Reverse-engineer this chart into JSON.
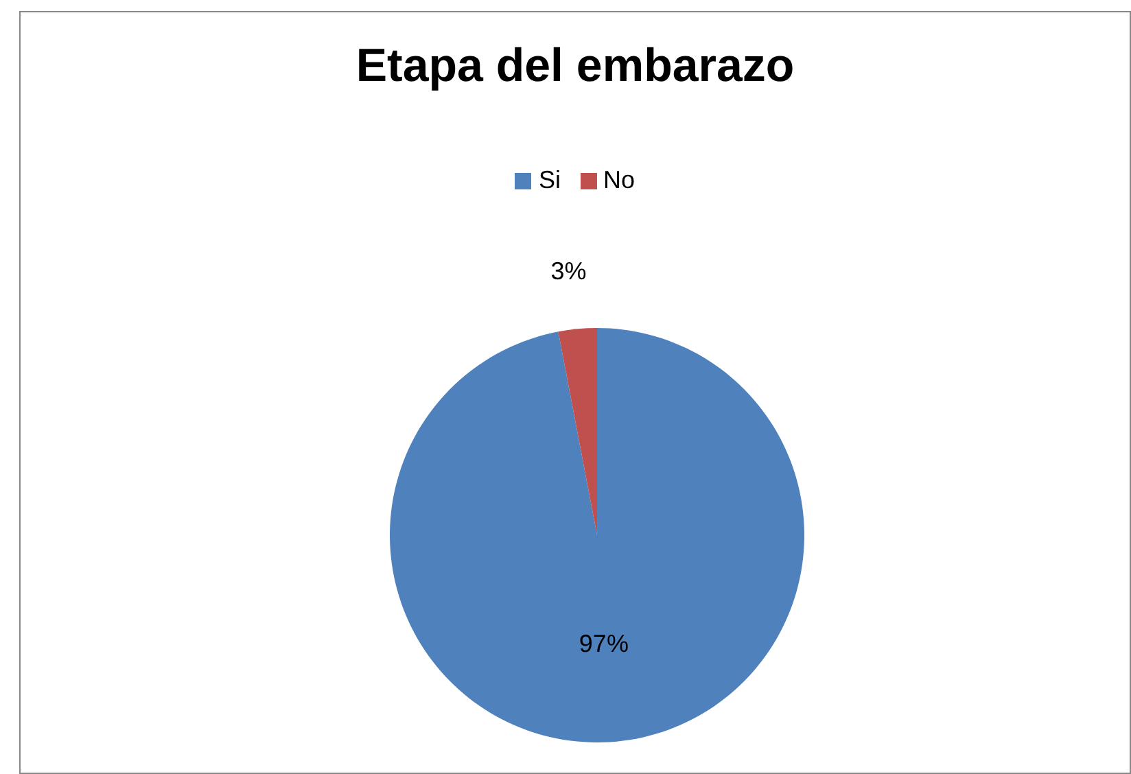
{
  "chart_data": {
    "type": "pie",
    "title": "Etapa del embarazo",
    "categories": [
      "Si",
      "No"
    ],
    "values": [
      97,
      3
    ],
    "value_labels": [
      "97%",
      "3%"
    ],
    "colors": [
      "#4f81bd",
      "#c0504d"
    ],
    "legend": "top"
  }
}
